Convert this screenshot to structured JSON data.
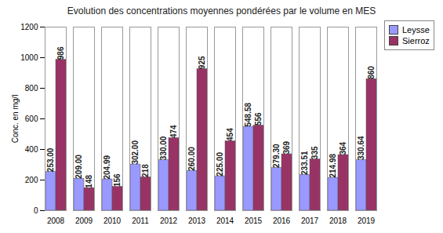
{
  "chart_data": {
    "type": "bar",
    "title": "Evolution des concentrations moyennes pondérées par le volume en MES",
    "y_label": "Conc. en mg/l",
    "categories": [
      "2008",
      "2009",
      "2010",
      "2011",
      "2012",
      "2013",
      "2014",
      "2015",
      "2016",
      "2017",
      "2018",
      "2019"
    ],
    "series": [
      {
        "name": "Leysse",
        "color": "#9999ff",
        "values": [
          253,
          209,
          204.99,
          302,
          330,
          260,
          225,
          548.58,
          279.3,
          233.51,
          214.98,
          330.64
        ],
        "value_labels": [
          "253.00",
          "209.00",
          "204.99",
          "302.00",
          "330.00",
          "260.00",
          "225.00",
          "548.58",
          "279.30",
          "233.51",
          "214.98",
          "330.64"
        ]
      },
      {
        "name": "Sierroz",
        "color": "#993366",
        "values": [
          986,
          148,
          156,
          218,
          474,
          925,
          454,
          556,
          369,
          335,
          364,
          860
        ]
      }
    ],
    "ylim": [
      0,
      1200
    ],
    "yticks": [
      0,
      200,
      400,
      600,
      800,
      1000,
      1200
    ],
    "grid": false,
    "legend": "top-right",
    "data_labels": true
  }
}
